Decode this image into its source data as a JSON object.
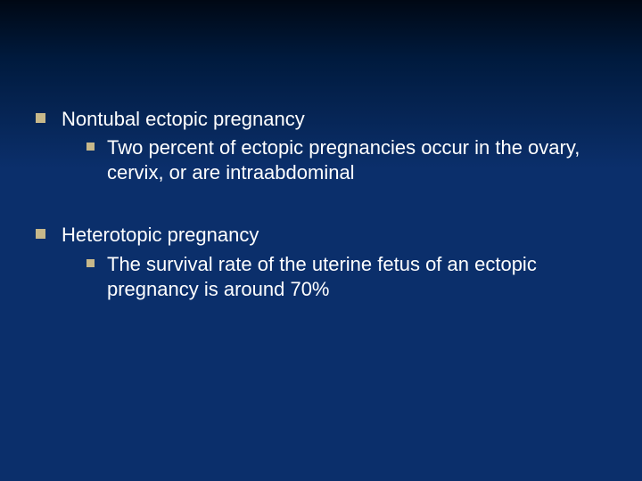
{
  "slide": {
    "background_gradient": [
      "#000814",
      "#001a3d",
      "#0b2f6b"
    ],
    "text_color": "#ffffff",
    "bullet_color": "#c7b88a",
    "font_family": "Arial",
    "heading_fontsize": 22,
    "sub_fontsize": 22,
    "items": [
      {
        "heading": "Nontubal ectopic pregnancy",
        "sub": "Two percent of ectopic pregnancies occur in the ovary, cervix, or are intraabdominal"
      },
      {
        "heading": "Heterotopic pregnancy",
        "sub": "The survival rate of the uterine fetus of an ectopic pregnancy is around 70%"
      }
    ]
  }
}
